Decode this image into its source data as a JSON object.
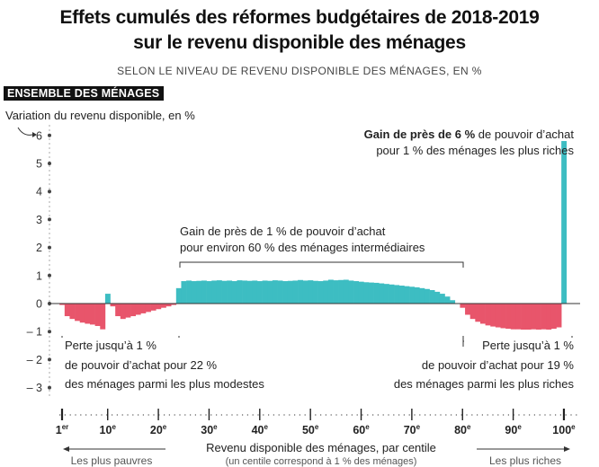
{
  "chart_data": {
    "type": "bar",
    "title_line1": "Effets cumulés des réformes budgétaires de 2018-2019",
    "title_line2": "sur le revenu disponible des ménages",
    "subtitle": "SELON LE NIVEAU DE REVENU DISPONIBLE DES MÉNAGES, EN %",
    "panel_label": "ENSEMBLE DES MÉNAGES",
    "ylabel": "Variation du revenu disponible, en %",
    "xlabel": "Revenu disponible des ménages, par centile",
    "xlabel_note": "(un centile correspond à 1 % des ménages)",
    "arrow_left_label": "Les plus pauvres",
    "arrow_right_label": "Les plus riches",
    "ylim": [
      -3.5,
      6.3
    ],
    "y_ticks": [
      6,
      5,
      4,
      3,
      2,
      1,
      0,
      -1,
      -2,
      -3
    ],
    "y_tick_labels": [
      "6",
      "5",
      "4",
      "3",
      "2",
      "1",
      "0",
      "– 1",
      "– 2",
      "– 3"
    ],
    "x_ticks": [
      {
        "centile": 1,
        "num": "1",
        "sup": "er"
      },
      {
        "centile": 10,
        "num": "10",
        "sup": "e"
      },
      {
        "centile": 20,
        "num": "20",
        "sup": "e"
      },
      {
        "centile": 30,
        "num": "30",
        "sup": "e"
      },
      {
        "centile": 40,
        "num": "40",
        "sup": "e"
      },
      {
        "centile": 50,
        "num": "50",
        "sup": "e"
      },
      {
        "centile": 60,
        "num": "60",
        "sup": "e"
      },
      {
        "centile": 70,
        "num": "70",
        "sup": "e"
      },
      {
        "centile": 80,
        "num": "80",
        "sup": "e"
      },
      {
        "centile": 90,
        "num": "90",
        "sup": "e"
      },
      {
        "centile": 100,
        "num": "100",
        "sup": "e"
      }
    ],
    "colors": {
      "positive": "#3dbdc2",
      "negative": "#e8556b",
      "axis": "#333333"
    },
    "categories": [
      1,
      2,
      3,
      4,
      5,
      6,
      7,
      8,
      9,
      10,
      11,
      12,
      13,
      14,
      15,
      16,
      17,
      18,
      19,
      20,
      21,
      22,
      23,
      24,
      25,
      26,
      27,
      28,
      29,
      30,
      31,
      32,
      33,
      34,
      35,
      36,
      37,
      38,
      39,
      40,
      41,
      42,
      43,
      44,
      45,
      46,
      47,
      48,
      49,
      50,
      51,
      52,
      53,
      54,
      55,
      56,
      57,
      58,
      59,
      60,
      61,
      62,
      63,
      64,
      65,
      66,
      67,
      68,
      69,
      70,
      71,
      72,
      73,
      74,
      75,
      76,
      77,
      78,
      79,
      80,
      81,
      82,
      83,
      84,
      85,
      86,
      87,
      88,
      89,
      90,
      91,
      92,
      93,
      94,
      95,
      96,
      97,
      98,
      99,
      100
    ],
    "values": [
      -0.05,
      -0.45,
      -0.55,
      -0.62,
      -0.68,
      -0.72,
      -0.75,
      -0.8,
      -0.92,
      0.35,
      -0.1,
      -0.45,
      -0.55,
      -0.5,
      -0.45,
      -0.4,
      -0.35,
      -0.3,
      -0.25,
      -0.2,
      -0.15,
      -0.1,
      -0.05,
      0.55,
      0.8,
      0.82,
      0.8,
      0.81,
      0.82,
      0.8,
      0.82,
      0.83,
      0.81,
      0.82,
      0.8,
      0.83,
      0.82,
      0.81,
      0.82,
      0.8,
      0.82,
      0.81,
      0.83,
      0.82,
      0.8,
      0.81,
      0.82,
      0.84,
      0.82,
      0.83,
      0.81,
      0.8,
      0.82,
      0.85,
      0.83,
      0.84,
      0.85,
      0.82,
      0.8,
      0.78,
      0.76,
      0.75,
      0.74,
      0.72,
      0.7,
      0.68,
      0.66,
      0.64,
      0.62,
      0.6,
      0.58,
      0.55,
      0.52,
      0.48,
      0.42,
      0.35,
      0.25,
      0.12,
      0.0,
      -0.15,
      -0.4,
      -0.55,
      -0.65,
      -0.72,
      -0.78,
      -0.82,
      -0.85,
      -0.88,
      -0.9,
      -0.92,
      -0.92,
      -0.93,
      -0.93,
      -0.92,
      -0.93,
      -0.92,
      -0.93,
      -0.9,
      -0.85,
      5.8
    ],
    "annotations": {
      "top_right_bold": "Gain de près de 6 %",
      "top_right_rest": "de pouvoir d’achat",
      "top_right_line2": "pour 1 % des ménages les plus riches",
      "middle_line1": "Gain de près de 1 % de pouvoir d’achat",
      "middle_line2": "pour environ 60 % des ménages intermédiaires",
      "left_line1": "Perte jusqu’à 1 %",
      "left_line2": "de pouvoir d’achat pour 22 %",
      "left_line3": "des ménages parmi les plus modestes",
      "right_line1": "Perte jusqu’à 1 %",
      "right_line2": "de pouvoir d’achat pour 19 %",
      "right_line3": "des ménages parmi les plus riches"
    }
  }
}
